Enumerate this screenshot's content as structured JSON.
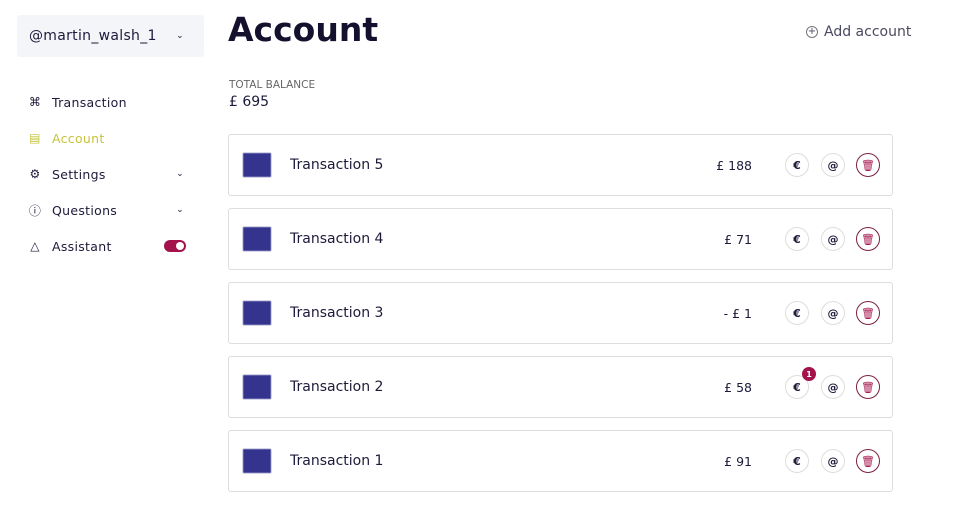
{
  "sidebar": {
    "user": "@martin_walsh_1",
    "items": [
      {
        "label": "Transaction",
        "icon": "grid-icon"
      },
      {
        "label": "Account",
        "icon": "card-icon",
        "active": true
      },
      {
        "label": "Settings",
        "icon": "gear-icon",
        "expandable": true
      },
      {
        "label": "Questions",
        "icon": "question-icon",
        "expandable": true
      },
      {
        "label": "Assistant",
        "icon": "flask-icon",
        "toggle": true
      }
    ]
  },
  "header": {
    "title": "Account",
    "add_label": "Add account"
  },
  "balance": {
    "label": "TOTAL BALANCE",
    "value": "£ 695"
  },
  "accent": "#a3124a",
  "transactions": [
    {
      "name": "Transaction 5",
      "amount": "£ 188"
    },
    {
      "name": "Transaction 4",
      "amount": "£ 71"
    },
    {
      "name": "Transaction 3",
      "amount": "- £ 1"
    },
    {
      "name": "Transaction 2",
      "amount": "£ 58",
      "badge": "1"
    },
    {
      "name": "Transaction 1",
      "amount": "£ 91"
    }
  ]
}
